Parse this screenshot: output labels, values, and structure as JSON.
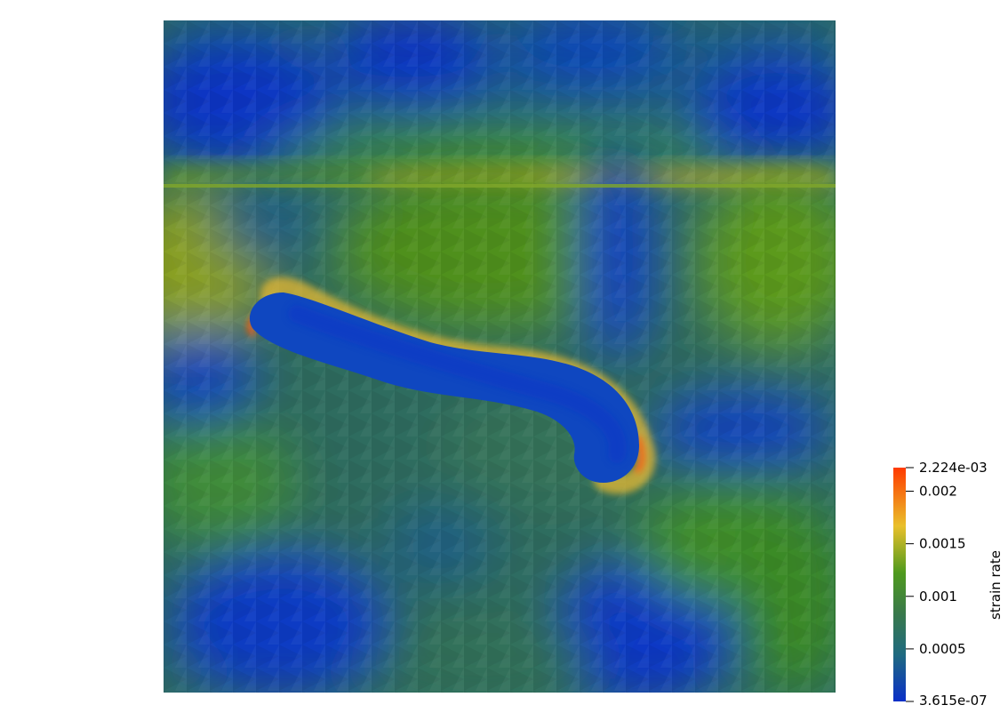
{
  "scene": {
    "description_colors": {
      "low": "#0a2fc8",
      "mid_low": "#1f6a80",
      "mid": "#3a7a4a",
      "mid_high": "#4f9a1e",
      "high": "#e9c02a",
      "max": "#ff3a00"
    }
  },
  "colorbar": {
    "title": "strain rate",
    "max_label": "2.224e-03",
    "min_label": "3.615e-07",
    "ticks": [
      {
        "label": "0.002",
        "value": 0.002
      },
      {
        "label": "0.0015",
        "value": 0.0015
      },
      {
        "label": "0.001",
        "value": 0.001
      },
      {
        "label": "0.0005",
        "value": 0.0005
      }
    ],
    "range": [
      3.615e-07,
      0.002224
    ],
    "colors": [
      "#0a2fc8",
      "#1f6a80",
      "#3a7a4a",
      "#4f9a1e",
      "#e9c02a",
      "#ff3a00"
    ]
  }
}
